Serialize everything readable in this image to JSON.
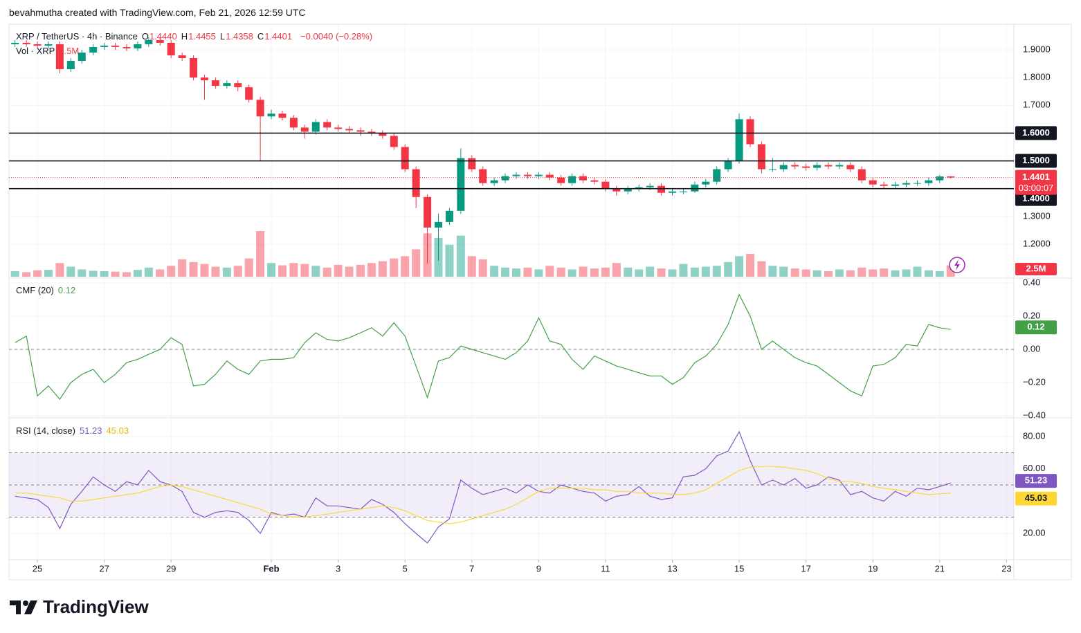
{
  "header": {
    "attribution": "bevahmutha created with TradingView.com, Feb 21, 2026 12:59 UTC"
  },
  "footer": {
    "brand": "TradingView"
  },
  "chart_data": [
    {
      "type": "candlestick",
      "title": "XRP / TetherUS · 4h · Binance",
      "ohlc": [
        {
          "label": "O",
          "value": "1.4440"
        },
        {
          "label": "H",
          "value": "1.4455"
        },
        {
          "label": "L",
          "value": "1.4358"
        },
        {
          "label": "C",
          "value": "1.4401"
        }
      ],
      "change": "−0.0040 (−0.28%)",
      "up_color": "#089981",
      "down_color": "#f23645",
      "grid": true,
      "x": [
        24.33,
        24.67,
        25,
        25.33,
        25.67,
        26,
        26.33,
        26.67,
        27,
        27.33,
        27.67,
        28,
        28.33,
        28.67,
        29,
        29.33,
        29.67,
        30,
        30.33,
        30.67,
        31,
        31.33,
        31.67,
        32,
        32.33,
        32.67,
        33,
        33.33,
        33.67,
        34,
        34.33,
        34.67,
        35,
        35.33,
        35.67,
        36,
        36.33,
        36.67,
        37,
        37.33,
        37.67,
        38,
        38.33,
        38.67,
        39,
        39.33,
        39.67,
        40,
        40.33,
        40.67,
        41,
        41.33,
        41.67,
        42,
        42.33,
        42.67,
        43,
        43.33,
        43.67,
        44,
        44.33,
        44.67,
        45,
        45.33,
        45.67,
        46,
        46.33,
        46.67,
        47,
        47.33,
        47.67,
        48,
        48.33,
        48.67,
        49,
        49.33,
        49.67,
        50,
        50.33,
        50.67,
        51,
        51.33,
        51.67,
        52,
        52.33
      ],
      "open": [
        1.92,
        1.925,
        1.92,
        1.915,
        1.92,
        1.83,
        1.86,
        1.89,
        1.91,
        1.915,
        1.91,
        1.905,
        1.92,
        1.935,
        1.925,
        1.88,
        1.87,
        1.8,
        1.79,
        1.77,
        1.78,
        1.765,
        1.72,
        1.66,
        1.67,
        1.655,
        1.62,
        1.605,
        1.64,
        1.62,
        1.615,
        1.61,
        1.605,
        1.6,
        1.59,
        1.55,
        1.47,
        1.37,
        1.26,
        1.28,
        1.32,
        1.51,
        1.47,
        1.42,
        1.43,
        1.445,
        1.45,
        1.445,
        1.45,
        1.44,
        1.42,
        1.445,
        1.43,
        1.425,
        1.4,
        1.39,
        1.4,
        1.405,
        1.41,
        1.385,
        1.39,
        1.39,
        1.415,
        1.425,
        1.47,
        1.5,
        1.65,
        1.56,
        1.47,
        1.47,
        1.485,
        1.48,
        1.475,
        1.485,
        1.48,
        1.485,
        1.47,
        1.43,
        1.415,
        1.41,
        1.415,
        1.42,
        1.42,
        1.43,
        1.444
      ],
      "high": [
        1.935,
        1.935,
        1.93,
        1.93,
        1.93,
        1.87,
        1.9,
        1.92,
        1.925,
        1.925,
        1.92,
        1.93,
        1.945,
        1.945,
        1.935,
        1.89,
        1.88,
        1.81,
        1.8,
        1.79,
        1.79,
        1.775,
        1.73,
        1.685,
        1.68,
        1.665,
        1.63,
        1.65,
        1.65,
        1.63,
        1.625,
        1.62,
        1.615,
        1.61,
        1.6,
        1.56,
        1.48,
        1.38,
        1.31,
        1.33,
        1.545,
        1.52,
        1.48,
        1.44,
        1.455,
        1.46,
        1.46,
        1.46,
        1.46,
        1.45,
        1.455,
        1.455,
        1.44,
        1.435,
        1.41,
        1.41,
        1.415,
        1.42,
        1.42,
        1.4,
        1.4,
        1.425,
        1.435,
        1.48,
        1.51,
        1.67,
        1.66,
        1.57,
        1.51,
        1.495,
        1.495,
        1.49,
        1.495,
        1.495,
        1.495,
        1.495,
        1.48,
        1.44,
        1.425,
        1.425,
        1.43,
        1.43,
        1.44,
        1.45,
        1.4455
      ],
      "low": [
        1.91,
        1.91,
        1.905,
        1.905,
        1.815,
        1.82,
        1.85,
        1.88,
        1.9,
        1.9,
        1.895,
        1.895,
        1.91,
        1.915,
        1.87,
        1.86,
        1.79,
        1.72,
        1.76,
        1.76,
        1.75,
        1.71,
        1.5,
        1.65,
        1.645,
        1.61,
        1.58,
        1.595,
        1.61,
        1.605,
        1.6,
        1.59,
        1.59,
        1.58,
        1.54,
        1.46,
        1.33,
        1.13,
        1.14,
        1.27,
        1.31,
        1.46,
        1.41,
        1.41,
        1.42,
        1.435,
        1.435,
        1.435,
        1.43,
        1.41,
        1.41,
        1.42,
        1.415,
        1.39,
        1.375,
        1.38,
        1.39,
        1.395,
        1.375,
        1.375,
        1.38,
        1.385,
        1.405,
        1.415,
        1.46,
        1.49,
        1.55,
        1.455,
        1.46,
        1.46,
        1.47,
        1.465,
        1.465,
        1.47,
        1.47,
        1.46,
        1.42,
        1.405,
        1.4,
        1.4,
        1.405,
        1.41,
        1.41,
        1.42,
        1.4358
      ],
      "close": [
        1.925,
        1.92,
        1.915,
        1.92,
        1.83,
        1.86,
        1.89,
        1.91,
        1.915,
        1.91,
        1.905,
        1.92,
        1.935,
        1.925,
        1.88,
        1.87,
        1.8,
        1.79,
        1.77,
        1.78,
        1.765,
        1.72,
        1.66,
        1.67,
        1.655,
        1.62,
        1.605,
        1.64,
        1.62,
        1.615,
        1.61,
        1.605,
        1.6,
        1.59,
        1.55,
        1.47,
        1.37,
        1.26,
        1.28,
        1.32,
        1.51,
        1.47,
        1.42,
        1.43,
        1.445,
        1.45,
        1.445,
        1.45,
        1.44,
        1.42,
        1.445,
        1.43,
        1.425,
        1.4,
        1.39,
        1.4,
        1.405,
        1.41,
        1.385,
        1.39,
        1.39,
        1.415,
        1.425,
        1.47,
        1.5,
        1.65,
        1.56,
        1.47,
        1.47,
        1.485,
        1.48,
        1.475,
        1.485,
        1.48,
        1.485,
        1.47,
        1.43,
        1.415,
        1.41,
        1.415,
        1.42,
        1.42,
        1.43,
        1.444,
        1.4401
      ],
      "volume": {
        "name": "Vol · XRP",
        "current_label": "2.5M",
        "values": [
          1.2,
          1.0,
          1.4,
          1.5,
          3.0,
          2.2,
          1.6,
          1.3,
          1.2,
          1.1,
          1.0,
          1.5,
          2.0,
          1.6,
          2.4,
          3.8,
          3.2,
          2.8,
          2.2,
          2.0,
          2.4,
          4.0,
          10.0,
          3.0,
          2.5,
          3.0,
          2.8,
          2.4,
          2.0,
          2.6,
          2.2,
          2.6,
          3.0,
          3.4,
          4.0,
          4.5,
          6.0,
          9.5,
          8.5,
          7.0,
          9.0,
          4.5,
          3.8,
          2.4,
          2.0,
          1.8,
          2.0,
          1.6,
          2.4,
          2.0,
          1.6,
          2.2,
          1.8,
          2.0,
          3.0,
          2.0,
          1.6,
          2.2,
          1.8,
          1.6,
          2.8,
          2.0,
          2.2,
          2.4,
          3.2,
          4.5,
          5.0,
          3.4,
          2.4,
          2.2,
          1.8,
          1.6,
          1.4,
          1.2,
          1.6,
          1.4,
          2.0,
          1.6,
          1.8,
          1.4,
          1.6,
          2.2,
          1.4,
          1.2,
          2.5
        ]
      },
      "levels": [
        {
          "value": 1.6,
          "label": "1.6000"
        },
        {
          "value": 1.5,
          "label": "1.5000"
        },
        {
          "value": 1.4,
          "label": "1.4000"
        }
      ],
      "last_price": {
        "value": 1.4401,
        "label": "1.4401",
        "countdown": "03:00:07"
      },
      "xlim": [
        24.15,
        54.22
      ],
      "xticks": [
        25,
        27,
        29,
        {
          "value": 32,
          "label": "Feb"
        },
        {
          "value": 34,
          "label": "3"
        },
        {
          "value": 36,
          "label": "5"
        },
        {
          "value": 38,
          "label": "7"
        },
        {
          "value": 40,
          "label": "9"
        },
        {
          "value": 42,
          "label": "11"
        },
        {
          "value": 44,
          "label": "13"
        },
        {
          "value": 46,
          "label": "15"
        },
        {
          "value": 48,
          "label": "17"
        },
        {
          "value": 50,
          "label": "19"
        },
        {
          "value": 52,
          "label": "21"
        },
        {
          "value": 54,
          "label": "23"
        }
      ],
      "ylim": [
        1.083,
        1.992
      ],
      "yticks": [
        {
          "value": 1.9,
          "label": "1.9000"
        },
        {
          "value": 1.8,
          "label": "1.8000"
        },
        {
          "value": 1.7,
          "label": "1.7000"
        },
        {
          "value": 1.3,
          "label": "1.3000"
        },
        {
          "value": 1.2,
          "label": "1.2000"
        }
      ]
    },
    {
      "type": "line",
      "title": "CMF (20)",
      "grid": true,
      "series": [
        {
          "color": "#43a047",
          "current_label": "0.12",
          "values": [
            0.04,
            0.08,
            -0.28,
            -0.22,
            -0.3,
            -0.2,
            -0.15,
            -0.12,
            -0.2,
            -0.15,
            -0.08,
            -0.06,
            -0.03,
            0,
            0.07,
            0.03,
            -0.22,
            -0.21,
            -0.15,
            -0.07,
            -0.12,
            -0.15,
            -0.07,
            -0.06,
            -0.06,
            -0.05,
            0.04,
            0.1,
            0.06,
            0.05,
            0.07,
            0.1,
            0.13,
            0.08,
            0.16,
            0.08,
            -0.1,
            -0.29,
            -0.07,
            -0.05,
            0.02,
            0,
            -0.02,
            -0.04,
            -0.06,
            -0.02,
            0.05,
            0.19,
            0.05,
            0.03,
            -0.06,
            -0.12,
            -0.04,
            -0.07,
            -0.1,
            -0.12,
            -0.14,
            -0.16,
            -0.16,
            -0.21,
            -0.17,
            -0.08,
            -0.04,
            0.03,
            0.15,
            0.33,
            0.2,
            0,
            0.05,
            0,
            -0.05,
            -0.08,
            -0.1,
            -0.15,
            -0.2,
            -0.25,
            -0.28,
            -0.1,
            -0.09,
            -0.05,
            0.03,
            0.02,
            0.15,
            0.13,
            0.12
          ]
        }
      ],
      "hlines": [
        0
      ],
      "ylim": [
        -0.408,
        0.425
      ],
      "yticks": [
        {
          "value": 0.4,
          "label": "0.40"
        },
        {
          "value": 0.2,
          "label": "0.20"
        },
        {
          "value": 0,
          "label": "0.00"
        },
        {
          "value": -0.2,
          "label": "−0.20"
        },
        {
          "value": -0.4,
          "label": "−0.40"
        }
      ]
    },
    {
      "type": "line",
      "title": "RSI (14, close)",
      "grid": true,
      "series": [
        {
          "color": "#7e57c2",
          "current_label": "51.23",
          "values": [
            43,
            42,
            41,
            36,
            23,
            38,
            46,
            55,
            50,
            46,
            52,
            50,
            59,
            52,
            50,
            46,
            33,
            30,
            33,
            34,
            33,
            28,
            20,
            33,
            31,
            32,
            30,
            42,
            37,
            37,
            36,
            35,
            41,
            38,
            33,
            26,
            20,
            14,
            24,
            29,
            53,
            48,
            44,
            46,
            48,
            45,
            50,
            46,
            45,
            50,
            48,
            46,
            45,
            40,
            43,
            44,
            49,
            43,
            41,
            42,
            55,
            56,
            60,
            68,
            71,
            83,
            65,
            50,
            53,
            50,
            54,
            48,
            50,
            55,
            53,
            44,
            46,
            42,
            40,
            46,
            43,
            48,
            47,
            49,
            51.23
          ]
        },
        {
          "color": "#fdd835",
          "current_label": "45.03",
          "values": [
            45,
            45,
            44,
            43,
            42,
            40,
            40,
            41,
            42,
            43,
            44,
            45,
            47,
            49,
            50,
            49,
            47,
            45,
            43,
            41,
            39,
            37,
            35,
            32,
            31,
            30,
            30,
            31,
            32,
            33,
            34,
            35,
            36,
            37,
            36,
            34,
            31,
            28,
            27,
            26,
            27,
            29,
            31,
            33,
            35,
            38,
            42,
            46,
            48,
            48,
            48,
            48,
            47,
            47,
            46,
            46,
            45,
            45,
            45,
            44,
            44,
            45,
            47,
            51,
            55,
            59,
            61,
            61.5,
            61.5,
            61,
            60,
            59,
            57,
            54,
            52,
            52,
            51,
            49,
            48,
            47,
            46,
            45,
            44,
            44.5,
            45.03
          ]
        }
      ],
      "band": [
        30,
        70
      ],
      "band_color": "#7e57c2",
      "hlines": [
        70,
        50,
        30
      ],
      "ylim": [
        4.14,
        91.14
      ],
      "yticks": [
        {
          "value": 80,
          "label": "80.00"
        },
        {
          "value": 60,
          "label": "60.00"
        },
        {
          "value": 20,
          "label": "20.00"
        }
      ]
    }
  ]
}
